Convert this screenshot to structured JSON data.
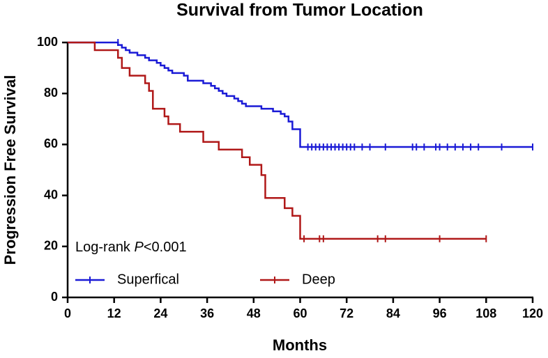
{
  "chart_data": {
    "type": "step",
    "title": "Survival from Tumor Location",
    "x_label": "Months",
    "y_label": "Progression Free Survival",
    "annotation": [
      "Log-rank ",
      "P",
      "<0.001"
    ],
    "xlim": [
      0,
      120
    ],
    "xticks": [
      0,
      12,
      24,
      36,
      48,
      60,
      72,
      84,
      96,
      108,
      120
    ],
    "ylim": [
      0,
      100
    ],
    "yticks": [
      0,
      20,
      40,
      60,
      80,
      100
    ],
    "grid": false,
    "legend": "lower left",
    "series": [
      {
        "name": "Superfical",
        "color": "#1a1ad6",
        "x": [
          0,
          13,
          14,
          15,
          16,
          18,
          20,
          21,
          23,
          24,
          25,
          26,
          27,
          30,
          31,
          35,
          37,
          38,
          39,
          40,
          41,
          43,
          44,
          45,
          46,
          50,
          53,
          55,
          56,
          57,
          58,
          60,
          120
        ],
        "values": [
          100,
          99,
          98,
          97,
          96,
          95,
          94,
          93,
          92,
          91,
          90,
          89,
          88,
          87,
          85,
          84,
          83,
          82,
          81,
          80,
          79,
          78,
          77,
          76,
          75,
          74,
          73,
          72,
          71,
          69,
          66,
          59,
          59
        ],
        "censored": {
          "x": [
            13,
            62,
            63,
            64,
            65,
            66,
            67,
            68,
            69,
            70,
            71,
            72,
            73,
            74,
            76,
            78,
            82,
            89,
            90,
            92,
            95,
            96,
            98,
            100,
            102,
            104,
            106,
            112,
            120
          ],
          "y": [
            100,
            59,
            59,
            59,
            59,
            59,
            59,
            59,
            59,
            59,
            59,
            59,
            59,
            59,
            59,
            59,
            59,
            59,
            59,
            59,
            59,
            59,
            59,
            59,
            59,
            59,
            59,
            59,
            59
          ]
        }
      },
      {
        "name": "Deep",
        "color": "#b01818",
        "x": [
          0,
          7,
          13,
          14,
          16,
          20,
          21,
          22,
          25,
          26,
          29,
          35,
          39,
          45,
          47,
          50,
          51,
          56,
          58,
          60,
          108
        ],
        "values": [
          100,
          97,
          94,
          90,
          87,
          84,
          81,
          74,
          71,
          68,
          65,
          61,
          58,
          55,
          52,
          48,
          39,
          35,
          32,
          23,
          23
        ],
        "censored": {
          "x": [
            61,
            65,
            66,
            80,
            82,
            96,
            108
          ],
          "y": [
            23,
            23,
            23,
            23,
            23,
            23,
            23
          ]
        }
      }
    ]
  }
}
